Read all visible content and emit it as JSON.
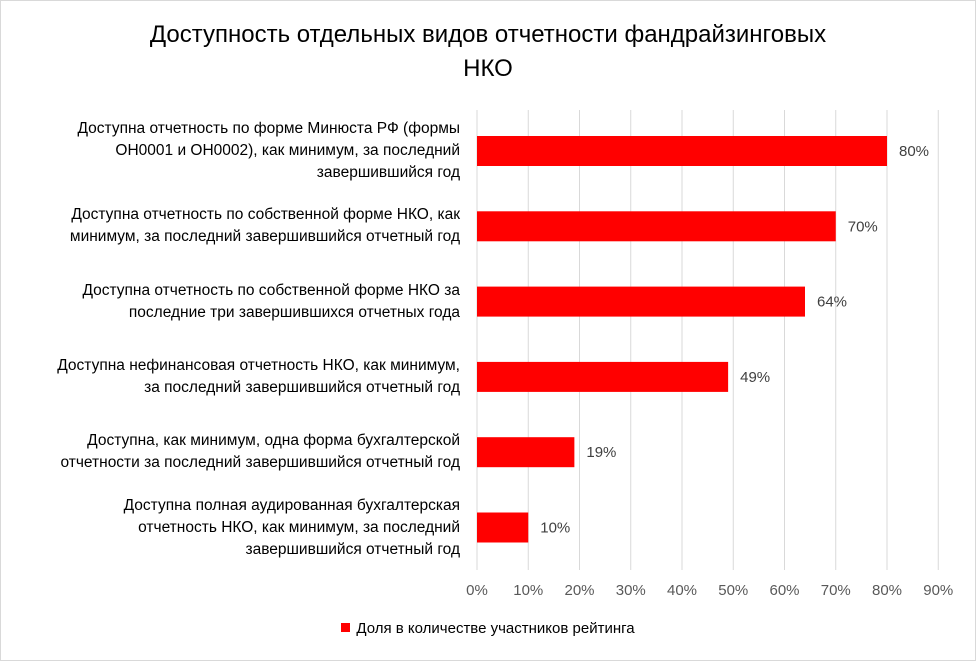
{
  "chart_data": {
    "type": "bar",
    "orientation": "horizontal",
    "title": [
      "Доступность отдельных видов отчетности фандрайзинговых",
      "НКО"
    ],
    "categories": [
      [
        "Доступна отчетность по форме Минюста РФ (формы",
        "ОН0001 и ОН0002), как минимум, за последний",
        "завершившийся год"
      ],
      [
        "Доступна отчетность по собственной форме НКО, как",
        "минимум, за последний завершившийся отчетный год"
      ],
      [
        "Доступна отчетность по собственной форме НКО за",
        "последние три завершившихся  отчетных года"
      ],
      [
        "Доступна нефинансовая отчетность НКО, как минимум,",
        "за последний завершившийся отчетный год"
      ],
      [
        "Доступна, как минимум, одна форма бухгалтерской",
        "отчетности за последний завершившийся отчетный год"
      ],
      [
        "Доступна полная аудированная бухгалтерская",
        "отчетность НКО, как минимум, за последний",
        "завершившийся отчетный год"
      ]
    ],
    "series": [
      {
        "name": "Доля в количестве участников рейтинга",
        "values": [
          80,
          70,
          64,
          49,
          19,
          10
        ],
        "data_labels": [
          "80%",
          "70%",
          "64%",
          "49%",
          "19%",
          "10%"
        ],
        "color": "#ff0000"
      }
    ],
    "x_ticks": [
      "0%",
      "10%",
      "20%",
      "30%",
      "40%",
      "50%",
      "60%",
      "70%",
      "80%",
      "90%"
    ],
    "xlim": [
      0,
      90
    ],
    "grid": "vertical",
    "legend_position": "bottom",
    "colors": {
      "bar": "#ff0000",
      "grid": "#d9d9d9",
      "tick_text": "#595959",
      "label_text": "#404040"
    }
  }
}
